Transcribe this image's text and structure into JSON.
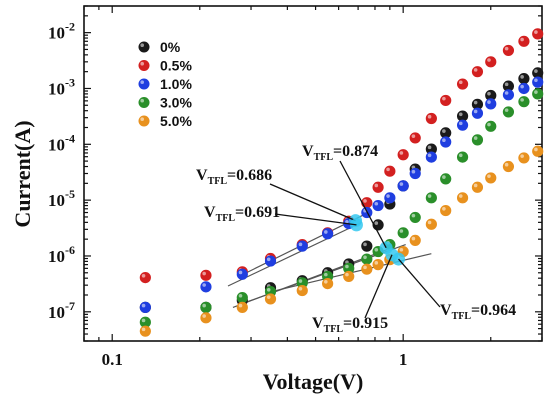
{
  "chart_data": {
    "type": "scatter",
    "xlabel": "Voltage(V)",
    "ylabel": "Current(A)",
    "xscale": "log",
    "yscale": "log",
    "xlim": [
      0.08,
      3.0
    ],
    "ylim": [
      3e-08,
      0.03
    ],
    "x_ticks": [
      {
        "value": 0.1,
        "label": "0.1"
      },
      {
        "value": 1,
        "label": "1"
      }
    ],
    "y_ticks": [
      {
        "value": 1e-07,
        "base": "10",
        "exp": "-7"
      },
      {
        "value": 1e-06,
        "base": "10",
        "exp": "-6"
      },
      {
        "value": 1e-05,
        "base": "10",
        "exp": "-5"
      },
      {
        "value": 0.0001,
        "base": "10",
        "exp": "-4"
      },
      {
        "value": 0.001,
        "base": "10",
        "exp": "-3"
      },
      {
        "value": 0.01,
        "base": "10",
        "exp": "-2"
      }
    ],
    "legend_position": "top-left",
    "series": [
      {
        "name": "0%",
        "color": "#1a1a1a",
        "x": [
          0.13,
          0.21,
          0.28,
          0.35,
          0.45,
          0.55,
          0.65,
          0.75,
          0.82,
          0.9,
          1.0,
          1.1,
          1.25,
          1.4,
          1.6,
          1.8,
          2.0,
          2.3,
          2.6,
          2.9
        ],
        "y": [
          1.2e-07,
          1.2e-07,
          1.6e-07,
          2.7e-07,
          3.6e-07,
          5e-07,
          7.2e-07,
          1.5e-06,
          3.6e-06,
          8.5e-06,
          1.8e-05,
          3.6e-05,
          8.2e-05,
          0.00016,
          0.00032,
          0.00052,
          0.00075,
          0.0011,
          0.0015,
          0.0019
        ]
      },
      {
        "name": "0.5%",
        "color": "#d32020",
        "x": [
          0.13,
          0.21,
          0.28,
          0.35,
          0.45,
          0.55,
          0.65,
          0.75,
          0.82,
          0.9,
          1.0,
          1.1,
          1.25,
          1.4,
          1.6,
          1.8,
          2.0,
          2.3,
          2.6,
          2.9
        ],
        "y": [
          4.1e-07,
          4.5e-07,
          5.2e-07,
          9e-07,
          1.6e-06,
          2.6e-06,
          4.2e-06,
          9e-06,
          1.7e-05,
          3.3e-05,
          6.5e-05,
          0.00013,
          0.00029,
          0.00061,
          0.0012,
          0.002,
          0.003,
          0.0048,
          0.007,
          0.0095
        ]
      },
      {
        "name": "1.0%",
        "color": "#1f3ee0",
        "x": [
          0.13,
          0.21,
          0.28,
          0.35,
          0.45,
          0.55,
          0.65,
          0.75,
          0.82,
          0.9,
          1.0,
          1.1,
          1.25,
          1.4,
          1.6,
          1.8,
          2.0,
          2.3,
          2.6,
          2.9
        ],
        "y": [
          1.2e-07,
          2.8e-07,
          4.7e-07,
          8.1e-07,
          1.5e-06,
          2.5e-06,
          3.8e-06,
          6e-06,
          8e-06,
          1.1e-05,
          1.8e-05,
          3e-05,
          5.9e-05,
          0.00011,
          0.00022,
          0.00036,
          0.00053,
          0.00077,
          0.001,
          0.0013
        ]
      },
      {
        "name": "3.0%",
        "color": "#2a8f2a",
        "x": [
          0.13,
          0.21,
          0.28,
          0.35,
          0.45,
          0.55,
          0.65,
          0.75,
          0.82,
          0.9,
          1.0,
          1.1,
          1.25,
          1.4,
          1.6,
          1.8,
          2.0,
          2.3,
          2.6,
          2.9
        ],
        "y": [
          6.5e-08,
          1.2e-07,
          1.8e-07,
          2.3e-07,
          3.3e-07,
          4.3e-07,
          6e-07,
          8.8e-07,
          1.2e-06,
          1.6e-06,
          2.6e-06,
          4.9e-06,
          1.1e-05,
          2.4e-05,
          5.9e-05,
          0.00012,
          0.00021,
          0.00038,
          0.00058,
          0.0008
        ]
      },
      {
        "name": "5.0%",
        "color": "#e8911e",
        "x": [
          0.13,
          0.21,
          0.28,
          0.35,
          0.45,
          0.55,
          0.65,
          0.75,
          0.82,
          0.9,
          1.0,
          1.1,
          1.25,
          1.4,
          1.6,
          1.8,
          2.0,
          2.3,
          2.6,
          2.9
        ],
        "y": [
          4.5e-08,
          7.8e-08,
          1.2e-07,
          1.7e-07,
          2.4e-07,
          3.2e-07,
          4.3e-07,
          5.8e-07,
          7e-07,
          8.6e-07,
          1.2e-06,
          1.9e-06,
          3.7e-06,
          6.5e-06,
          1.1e-05,
          1.7e-05,
          2.5e-05,
          4e-05,
          5.7e-05,
          7.5e-05
        ]
      }
    ],
    "fit_lines": [
      {
        "color": "#555555",
        "x": [
          0.26,
          0.88
        ],
        "y": [
          1.2e-07,
          1.3e-06
        ]
      },
      {
        "color": "#555555",
        "x": [
          0.29,
          1.02
        ],
        "y": [
          1.5e-07,
          1.6e-06
        ]
      },
      {
        "color": "#555555",
        "x": [
          0.34,
          1.25
        ],
        "y": [
          2.2e-07,
          1.1e-06
        ]
      },
      {
        "color": "#555555",
        "x": [
          0.27,
          0.75
        ],
        "y": [
          4.2e-07,
          5.8e-06
        ]
      },
      {
        "color": "#555555",
        "x": [
          0.25,
          0.72
        ],
        "y": [
          2.9e-07,
          4e-06
        ]
      }
    ],
    "annotations": [
      {
        "text": "0.874",
        "x": 0.874,
        "y": 1.4e-06
      },
      {
        "text": "0.686",
        "x": 0.686,
        "y": 4.3e-06
      },
      {
        "text": "0.691",
        "x": 0.691,
        "y": 3.6e-06
      },
      {
        "text": "0.915",
        "x": 0.915,
        "y": 1.05e-06
      },
      {
        "text": "0.964",
        "x": 0.964,
        "y": 8.8e-07
      }
    ],
    "annotation_prefix": "V",
    "annotation_subscript": "TFL",
    "annotation_equals": "="
  }
}
